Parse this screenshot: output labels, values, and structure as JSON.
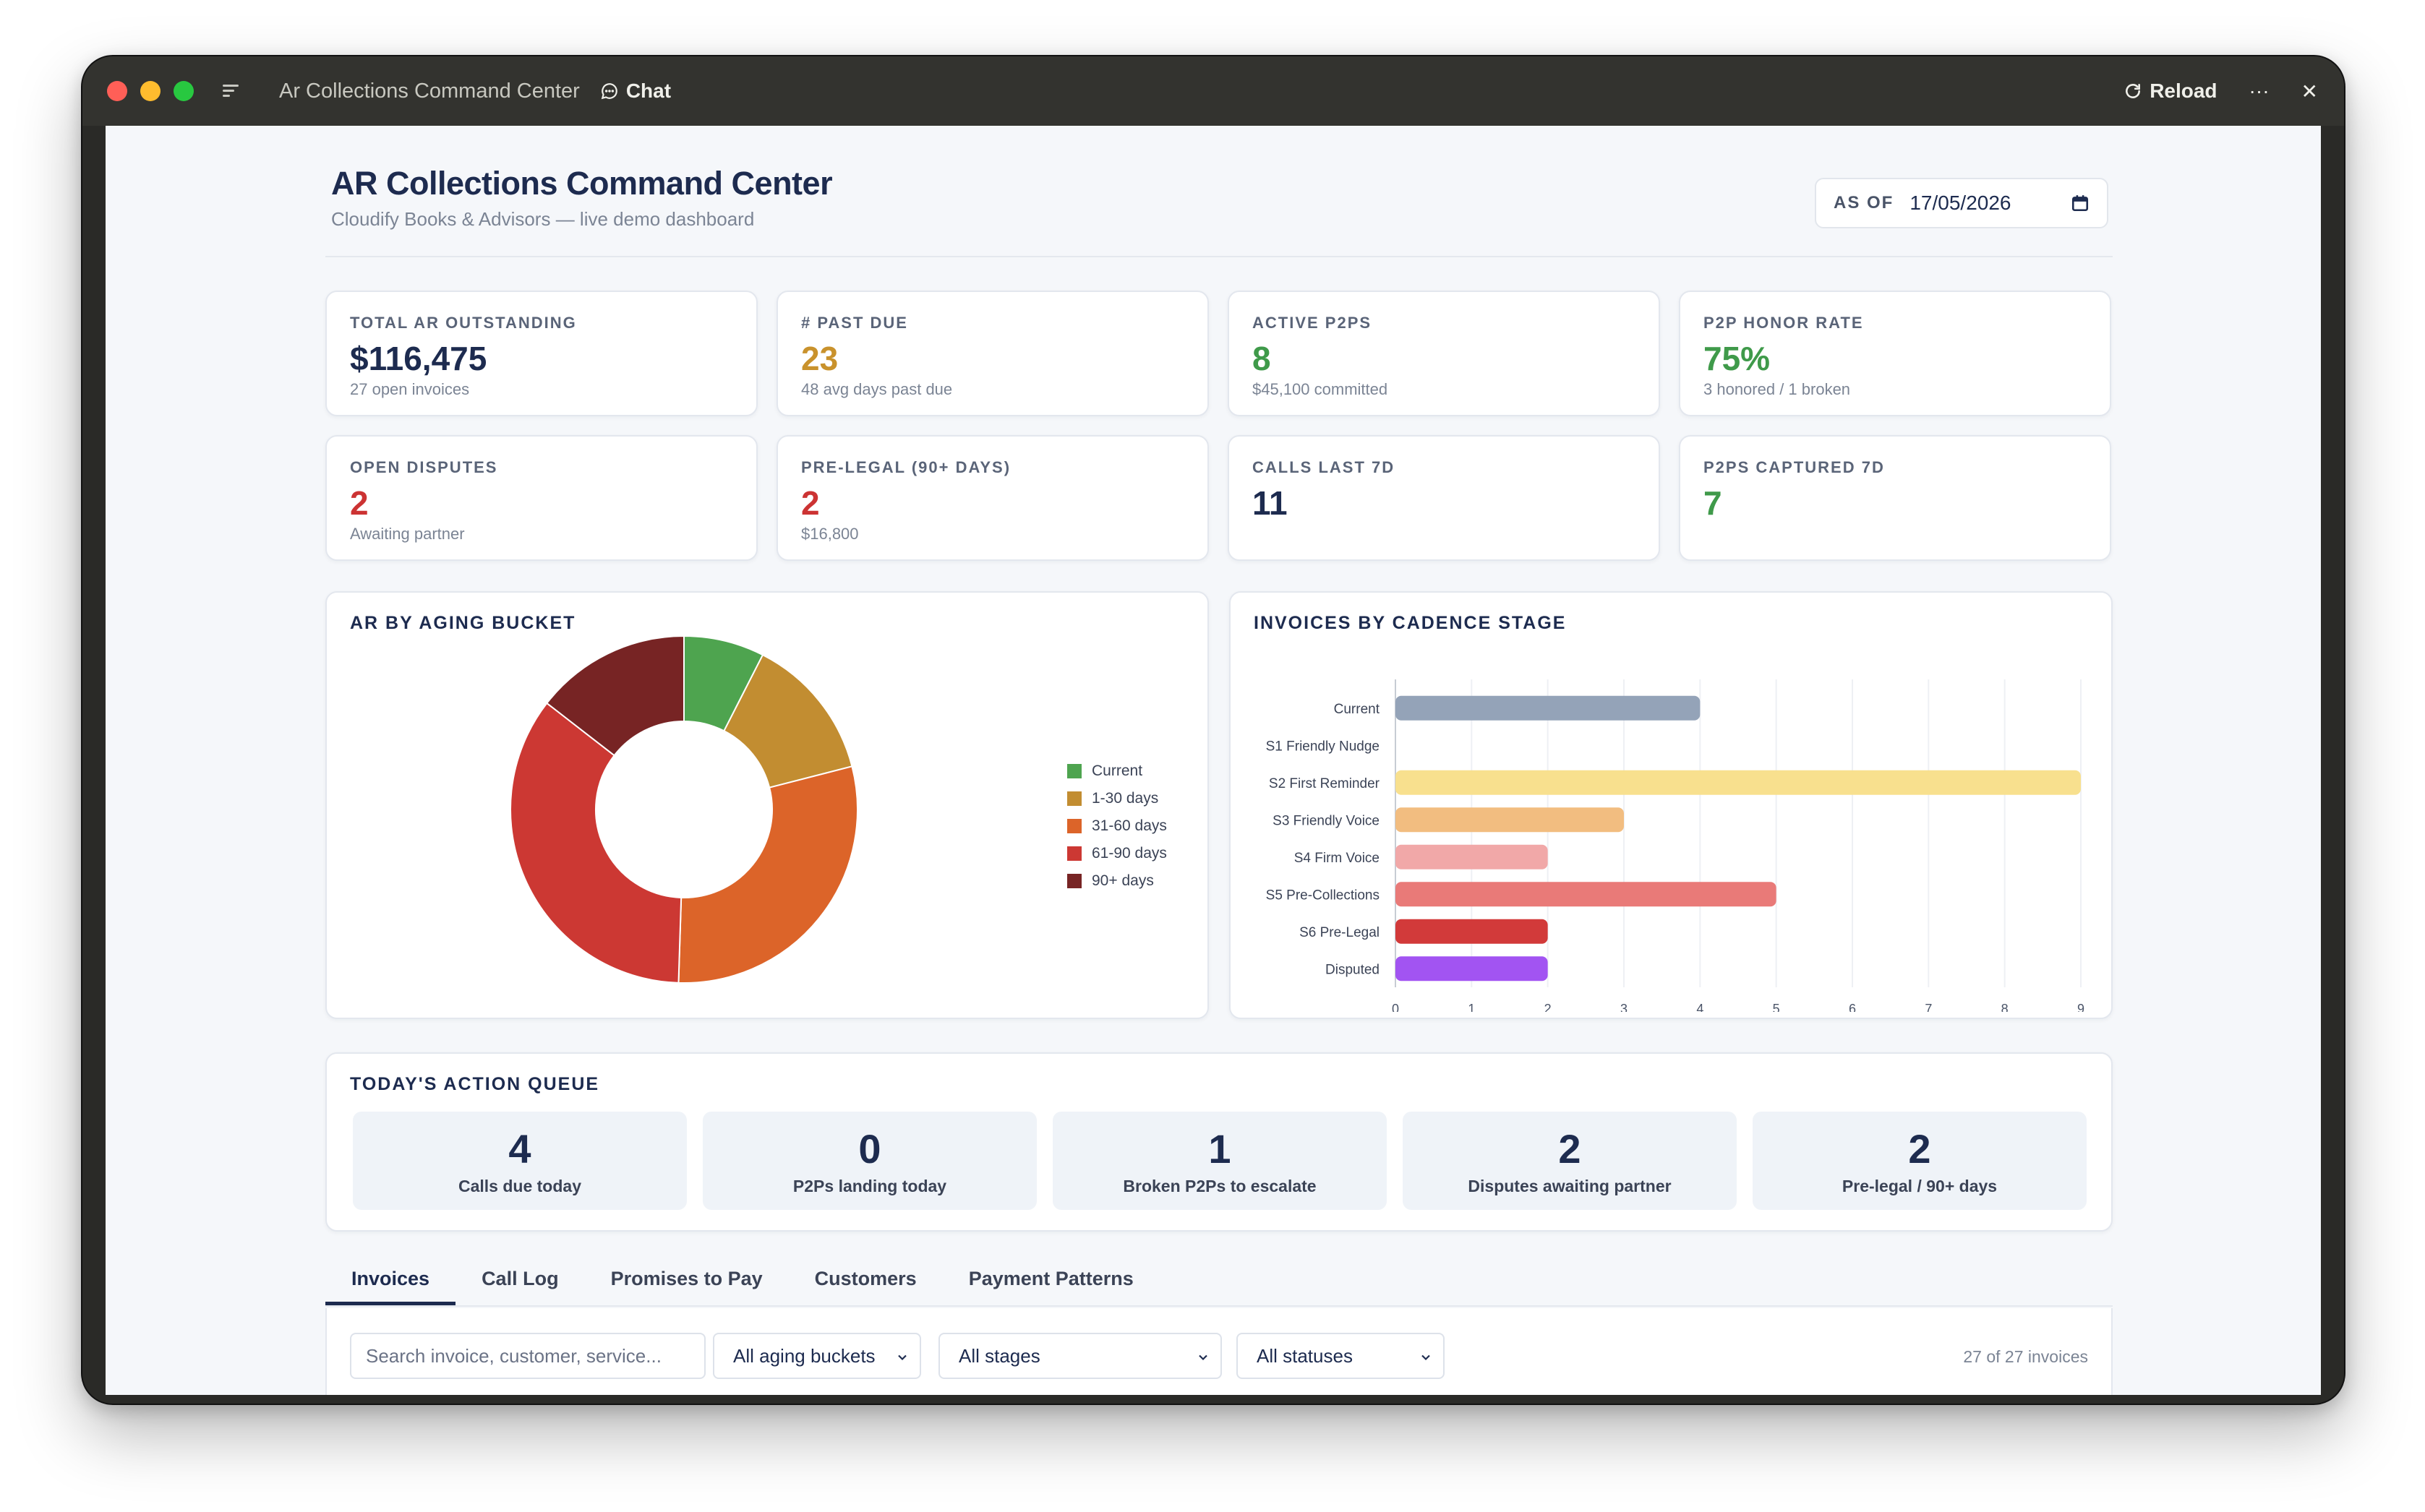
{
  "titlebar": {
    "app_title": "Ar Collections Command Center",
    "chat_label": "Chat",
    "reload_label": "Reload",
    "more_label": "···",
    "close_label": "✕"
  },
  "header": {
    "title": "AR Collections Command Center",
    "subtitle": "Cloudify Books & Advisors — live demo dashboard",
    "asof_label": "AS OF",
    "asof_value": "17/05/2026"
  },
  "kpis": [
    {
      "label": "TOTAL AR OUTSTANDING",
      "value": "$116,475",
      "sub": "27 open invoices",
      "color": "#1d2b4f"
    },
    {
      "label": "# PAST DUE",
      "value": "23",
      "sub": "48 avg days past due",
      "color": "#c9922c"
    },
    {
      "label": "ACTIVE P2PS",
      "value": "8",
      "sub": "$45,100 committed",
      "color": "#3f9a4a"
    },
    {
      "label": "P2P HONOR RATE",
      "value": "75%",
      "sub": "3 honored / 1 broken",
      "color": "#3f9a4a"
    },
    {
      "label": "OPEN DISPUTES",
      "value": "2",
      "sub": "Awaiting partner",
      "color": "#cc3333"
    },
    {
      "label": "PRE-LEGAL (90+ DAYS)",
      "value": "2",
      "sub": "$16,800",
      "color": "#cc3333"
    },
    {
      "label": "CALLS LAST 7D",
      "value": "11",
      "sub": "",
      "color": "#1d2b4f"
    },
    {
      "label": "P2PS CAPTURED 7D",
      "value": "7",
      "sub": "",
      "color": "#3f9a4a"
    }
  ],
  "aging_chart": {
    "title": "AR BY AGING BUCKET",
    "chart_data": {
      "type": "pie",
      "categories": [
        "Current",
        "1-30 days",
        "31-60 days",
        "61-90 days",
        "90+ days"
      ],
      "values": [
        7.5,
        13.5,
        29.5,
        35,
        14.5
      ],
      "colors": [
        "#4ea44f",
        "#c28d31",
        "#dc6429",
        "#cc3833",
        "#772424"
      ]
    }
  },
  "stage_chart": {
    "title": "INVOICES BY CADENCE STAGE",
    "chart_data": {
      "type": "bar",
      "categories": [
        "Current",
        "S1 Friendly Nudge",
        "S2 First Reminder",
        "S3 Friendly Voice",
        "S4 Firm Voice",
        "S5 Pre-Collections",
        "S6 Pre-Legal",
        "Disputed"
      ],
      "values": [
        4,
        0,
        9,
        3,
        2,
        5,
        2,
        2
      ],
      "colors": [
        "#94a3b8",
        "#94a3b8",
        "#f8e08e",
        "#f2bd80",
        "#f1a8a8",
        "#e97a78",
        "#d23a3a",
        "#a254f2"
      ],
      "xlim": [
        0,
        9
      ],
      "xticks": [
        "0",
        "1",
        "2",
        "3",
        "4",
        "5",
        "6",
        "7",
        "8",
        "9"
      ]
    }
  },
  "queue": {
    "title": "TODAY'S ACTION QUEUE",
    "cards": [
      {
        "num": "4",
        "label": "Calls due today"
      },
      {
        "num": "0",
        "label": "P2Ps landing today"
      },
      {
        "num": "1",
        "label": "Broken P2Ps to escalate"
      },
      {
        "num": "2",
        "label": "Disputes awaiting partner"
      },
      {
        "num": "2",
        "label": "Pre-legal / 90+ days"
      }
    ]
  },
  "tabs": [
    "Invoices",
    "Call Log",
    "Promises to Pay",
    "Customers",
    "Payment Patterns"
  ],
  "filters": {
    "search_placeholder": "Search invoice, customer, service...",
    "aging": "All aging buckets",
    "stages": "All stages",
    "statuses": "All statuses",
    "count": "27 of 27 invoices"
  }
}
